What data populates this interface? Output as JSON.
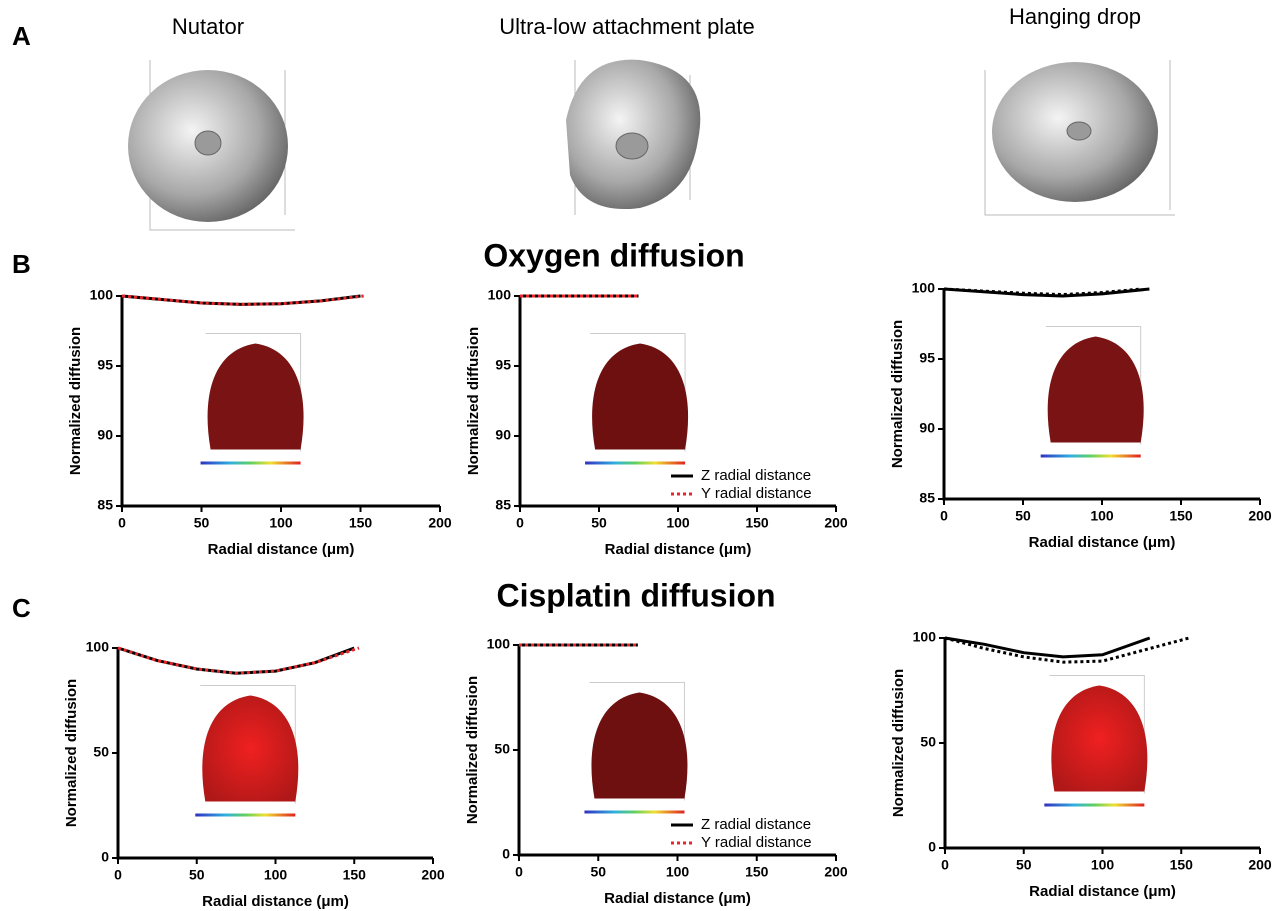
{
  "figure": {
    "panels": [
      "A",
      "B",
      "C"
    ],
    "columns": [
      "Nutator",
      "Ultra-low attachment plate",
      "Hanging drop"
    ],
    "sections": [
      "Oxygen diffusion",
      "Cisplatin diffusion"
    ]
  },
  "chart_data": [
    {
      "type": "line",
      "xlabel": "Radial distance (μm)",
      "ylabel": "Normalized diffusion",
      "xlim": [
        0,
        200
      ],
      "xticks": [
        0,
        50,
        100,
        150,
        200
      ],
      "ylim": [
        85,
        100
      ],
      "yticks": [
        85,
        90,
        95,
        100
      ],
      "series": [
        {
          "color": "#000000",
          "style": "solid",
          "x": [
            0,
            25,
            50,
            75,
            100,
            125,
            150
          ],
          "values": [
            100,
            99.75,
            99.5,
            99.4,
            99.45,
            99.65,
            100
          ]
        },
        {
          "color": "#e8262a",
          "style": "dotted",
          "x": [
            0,
            25,
            50,
            75,
            100,
            125,
            152
          ],
          "values": [
            100,
            99.75,
            99.5,
            99.4,
            99.45,
            99.65,
            100
          ]
        }
      ]
    },
    {
      "type": "line",
      "xlabel": "Radial distance (μm)",
      "ylabel": "Normalized diffusion",
      "xlim": [
        0,
        200
      ],
      "xticks": [
        0,
        50,
        100,
        150,
        200
      ],
      "ylim": [
        85,
        100
      ],
      "yticks": [
        85,
        90,
        95,
        100
      ],
      "legend": "lower right",
      "series": [
        {
          "name": "Z radial distance",
          "color": "#000000",
          "style": "solid",
          "x": [
            0,
            25,
            50,
            75
          ],
          "values": [
            100,
            100,
            100,
            100
          ]
        },
        {
          "name": "Y radial distance",
          "color": "#e8262a",
          "style": "dotted",
          "x": [
            0,
            25,
            50,
            75
          ],
          "values": [
            100,
            100,
            100,
            100
          ]
        }
      ]
    },
    {
      "type": "line",
      "xlabel": "Radial distance (μm)",
      "ylabel": "Normalized diffusion",
      "xlim": [
        0,
        200
      ],
      "xticks": [
        0,
        50,
        100,
        150,
        200
      ],
      "ylim": [
        85,
        100
      ],
      "yticks": [
        85,
        90,
        95,
        100
      ],
      "series": [
        {
          "color": "#000000",
          "style": "solid",
          "x": [
            0,
            25,
            50,
            75,
            100,
            130
          ],
          "values": [
            100,
            99.8,
            99.6,
            99.5,
            99.65,
            100
          ]
        },
        {
          "color": "#000000",
          "style": "dotted",
          "x": [
            0,
            25,
            50,
            75,
            100,
            125
          ],
          "values": [
            100,
            99.85,
            99.7,
            99.6,
            99.75,
            100
          ]
        }
      ]
    },
    {
      "type": "line",
      "xlabel": "Radial distance (μm)",
      "ylabel": "Normalized diffusion",
      "xlim": [
        0,
        200
      ],
      "xticks": [
        0,
        50,
        100,
        150,
        200
      ],
      "ylim": [
        0,
        100
      ],
      "yticks": [
        0,
        50,
        100
      ],
      "series": [
        {
          "color": "#000000",
          "style": "solid",
          "x": [
            0,
            25,
            50,
            75,
            100,
            125,
            150
          ],
          "values": [
            100,
            94,
            90,
            88,
            89,
            93,
            100
          ]
        },
        {
          "color": "#e8262a",
          "style": "dotted",
          "x": [
            0,
            25,
            50,
            75,
            100,
            125,
            153
          ],
          "values": [
            100,
            94,
            90,
            88,
            89,
            93,
            100
          ]
        }
      ]
    },
    {
      "type": "line",
      "xlabel": "Radial distance (μm)",
      "ylabel": "Normalized diffusion",
      "xlim": [
        0,
        200
      ],
      "xticks": [
        0,
        50,
        100,
        150,
        200
      ],
      "ylim": [
        0,
        100
      ],
      "yticks": [
        0,
        50,
        100
      ],
      "legend": "lower right",
      "series": [
        {
          "name": "Z radial distance",
          "color": "#000000",
          "style": "solid",
          "x": [
            0,
            25,
            50,
            75
          ],
          "values": [
            100,
            100,
            100,
            100
          ]
        },
        {
          "name": "Y radial distance",
          "color": "#e8262a",
          "style": "dotted",
          "x": [
            0,
            25,
            50,
            75
          ],
          "values": [
            100,
            100,
            100,
            100
          ]
        }
      ]
    },
    {
      "type": "line",
      "xlabel": "Radial distance (μm)",
      "ylabel": "Normalized diffusion",
      "xlim": [
        0,
        200
      ],
      "xticks": [
        0,
        50,
        100,
        150,
        200
      ],
      "ylim": [
        0,
        100
      ],
      "yticks": [
        0,
        50,
        100
      ],
      "series": [
        {
          "color": "#000000",
          "style": "solid",
          "x": [
            0,
            25,
            50,
            75,
            100,
            130
          ],
          "values": [
            100,
            97,
            93,
            91,
            92,
            100
          ]
        },
        {
          "color": "#000000",
          "style": "dotted",
          "x": [
            0,
            25,
            50,
            75,
            100,
            130,
            155
          ],
          "values": [
            100,
            95,
            91,
            88.5,
            89,
            95,
            100
          ]
        }
      ]
    }
  ]
}
